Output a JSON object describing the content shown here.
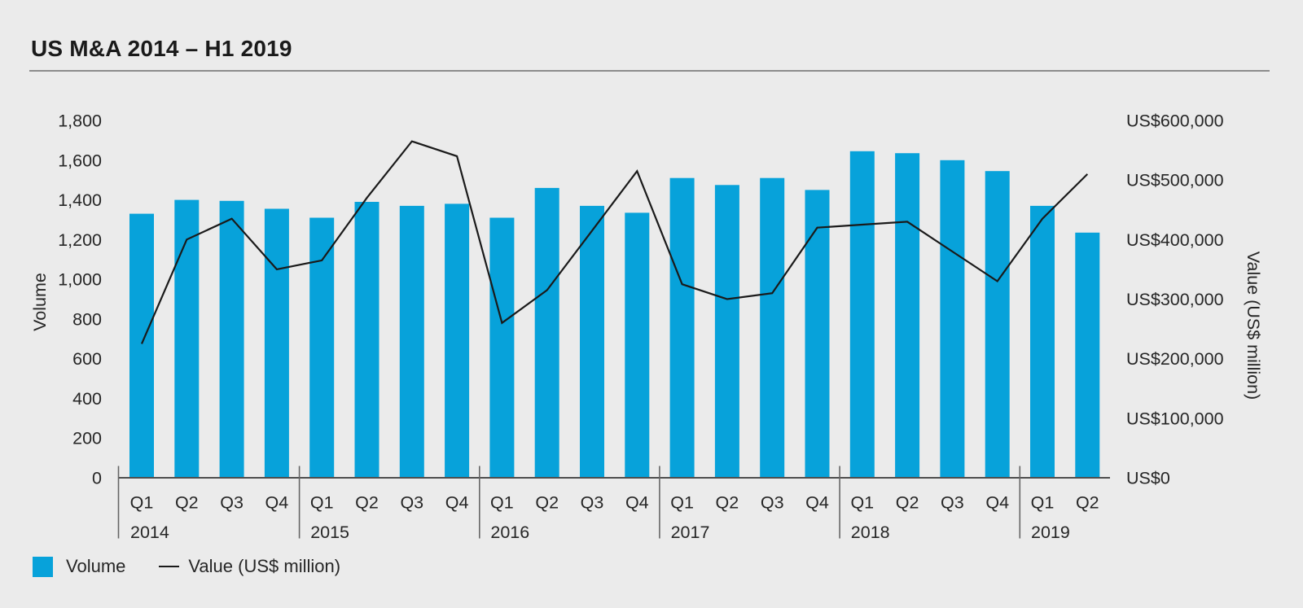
{
  "title": "US M&A 2014 – H1 2019",
  "legend": {
    "items": [
      {
        "label": "Volume",
        "marker": "square"
      },
      {
        "label": "Value (US$ million)",
        "marker": "line"
      }
    ]
  },
  "colors": {
    "background": "#EBEBEB",
    "bar": "#07A2DA",
    "line": "#1A1A1A",
    "text": "#262626",
    "axis": "#4D4D4D",
    "divider": "#666666",
    "title_rule": "#8C8C8C"
  },
  "chart_data": {
    "type": "combo-bar-line",
    "title": "US M&A 2014 – H1 2019",
    "x": {
      "year_groups": [
        {
          "year": "2014",
          "quarters": [
            "Q1",
            "Q2",
            "Q3",
            "Q4"
          ]
        },
        {
          "year": "2015",
          "quarters": [
            "Q1",
            "Q2",
            "Q3",
            "Q4"
          ]
        },
        {
          "year": "2016",
          "quarters": [
            "Q1",
            "Q2",
            "Q3",
            "Q4"
          ]
        },
        {
          "year": "2017",
          "quarters": [
            "Q1",
            "Q2",
            "Q3",
            "Q4"
          ]
        },
        {
          "year": "2018",
          "quarters": [
            "Q1",
            "Q2",
            "Q3",
            "Q4"
          ]
        },
        {
          "year": "2019",
          "quarters": [
            "Q1",
            "Q2"
          ]
        }
      ]
    },
    "series": [
      {
        "name": "Volume",
        "type": "bar",
        "axis": "left",
        "values": [
          1330,
          1400,
          1395,
          1355,
          1310,
          1390,
          1370,
          1380,
          1310,
          1460,
          1370,
          1335,
          1510,
          1475,
          1510,
          1450,
          1645,
          1635,
          1600,
          1545,
          1370,
          1235
        ]
      },
      {
        "name": "Value (US$ million)",
        "type": "line",
        "axis": "right",
        "values": [
          225000,
          400000,
          435000,
          350000,
          365000,
          470000,
          565000,
          540000,
          260000,
          315000,
          415000,
          515000,
          325000,
          300000,
          310000,
          420000,
          425000,
          430000,
          380000,
          330000,
          435000,
          510000
        ]
      }
    ],
    "left_axis": {
      "title": "Volume",
      "min": 0,
      "max": 1800,
      "step": 200
    },
    "right_axis": {
      "title": "Value (US$ million)",
      "min": 0,
      "max": 600000,
      "step": 100000,
      "prefix": "US$"
    },
    "grid": "off",
    "legend_position": "bottom-left"
  }
}
